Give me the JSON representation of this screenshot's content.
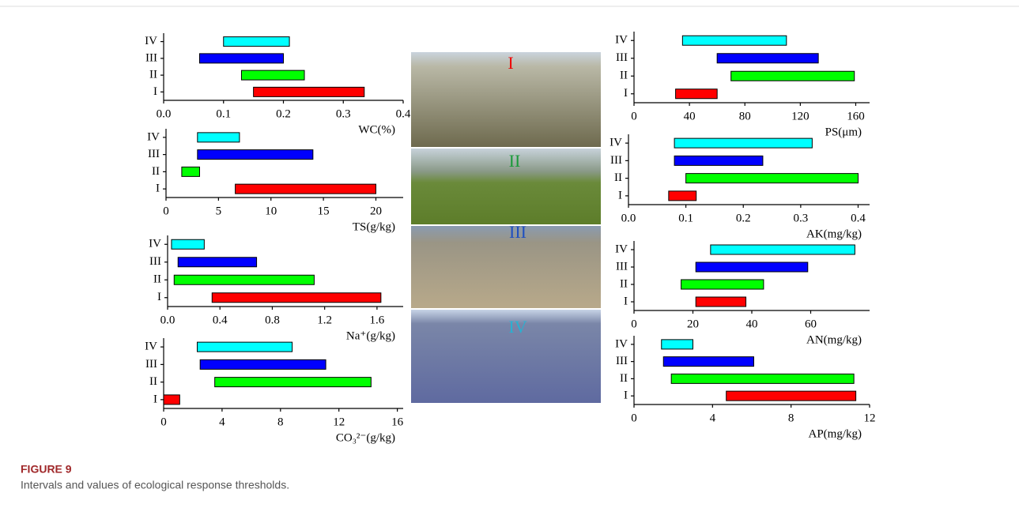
{
  "figure": {
    "label": "FIGURE 9",
    "caption": "Intervals and values of ecological response thresholds."
  },
  "photos": {
    "labels": [
      "I",
      "II",
      "III",
      "IV"
    ]
  },
  "chart_data": [
    {
      "type": "range-bar",
      "categories": [
        "I",
        "II",
        "III",
        "IV"
      ],
      "colors": [
        "#ff0000",
        "#00ff00",
        "#0000ff",
        "#00ffff"
      ],
      "values": [
        [
          0.15,
          0.335
        ],
        [
          0.13,
          0.235
        ],
        [
          0.06,
          0.2
        ],
        [
          0.1,
          0.21
        ]
      ],
      "xlabel": "WC(%)",
      "xlim": [
        0,
        0.4
      ],
      "xticks": [
        {
          "value": 0,
          "label": "0.0"
        },
        0.1,
        0.2,
        0.3,
        0.4
      ]
    },
    {
      "type": "range-bar",
      "categories": [
        "I",
        "II",
        "III",
        "IV"
      ],
      "colors": [
        "#ff0000",
        "#00ff00",
        "#0000ff",
        "#00ffff"
      ],
      "values": [
        [
          6.6,
          20
        ],
        [
          1.5,
          3.2
        ],
        [
          3,
          14
        ],
        [
          3,
          7
        ]
      ],
      "xlabel": "TS(g/kg)",
      "xlim": [
        0,
        22.6
      ],
      "xticks": [
        0,
        5,
        10,
        15,
        20
      ]
    },
    {
      "type": "range-bar",
      "categories": [
        "I",
        "II",
        "III",
        "IV"
      ],
      "colors": [
        "#ff0000",
        "#00ff00",
        "#0000ff",
        "#00ffff"
      ],
      "values": [
        [
          0.34,
          1.63
        ],
        [
          0.05,
          1.12
        ],
        [
          0.08,
          0.68
        ],
        [
          0.03,
          0.28
        ]
      ],
      "xlabel": "Na⁺(g/kg)",
      "xlim": [
        0,
        1.8
      ],
      "xticks": [
        {
          "value": 0,
          "label": "0.0"
        },
        0.4,
        0.8,
        1.2,
        1.6
      ]
    },
    {
      "type": "range-bar",
      "categories": [
        "I",
        "II",
        "III",
        "IV"
      ],
      "colors": [
        "#ff0000",
        "#00ff00",
        "#0000ff",
        "#00ffff"
      ],
      "values": [
        [
          0,
          1.1
        ],
        [
          3.5,
          14.2
        ],
        [
          2.5,
          11.1
        ],
        [
          2.3,
          8.8
        ]
      ],
      "xlabel": "CO₃²⁻(g/kg)",
      "xlim": [
        0,
        16.4
      ],
      "xticks": [
        0,
        4,
        8,
        12,
        16
      ]
    },
    {
      "type": "range-bar",
      "categories": [
        "I",
        "II",
        "III",
        "IV"
      ],
      "colors": [
        "#ff0000",
        "#00ff00",
        "#0000ff",
        "#00ffff"
      ],
      "values": [
        [
          30,
          60
        ],
        [
          70,
          159
        ],
        [
          60,
          133
        ],
        [
          35,
          110
        ]
      ],
      "xlabel": "PS(μm)",
      "xlim": [
        0,
        170
      ],
      "xticks": [
        0,
        40,
        80,
        120,
        160
      ]
    },
    {
      "type": "range-bar",
      "categories": [
        "I",
        "II",
        "III",
        "IV"
      ],
      "colors": [
        "#ff0000",
        "#00ff00",
        "#0000ff",
        "#00ffff"
      ],
      "values": [
        [
          0.07,
          0.118
        ],
        [
          0.1,
          0.4
        ],
        [
          0.08,
          0.234
        ],
        [
          0.08,
          0.32
        ]
      ],
      "xlabel": "AK(mg/kg)",
      "xlim": [
        0,
        0.42
      ],
      "xticks": [
        {
          "value": 0,
          "label": "0.0"
        },
        0.1,
        0.2,
        0.3,
        0.4
      ]
    },
    {
      "type": "range-bar",
      "categories": [
        "I",
        "II",
        "III",
        "IV"
      ],
      "colors": [
        "#ff0000",
        "#00ff00",
        "#0000ff",
        "#00ffff"
      ],
      "values": [
        [
          21,
          38
        ],
        [
          16,
          44
        ],
        [
          21,
          59
        ],
        [
          26,
          75
        ]
      ],
      "xlabel": "AN(mg/kg)",
      "xlim": [
        0,
        80
      ],
      "xticks": [
        0,
        20,
        40,
        60
      ]
    },
    {
      "type": "range-bar",
      "categories": [
        "I",
        "II",
        "III",
        "IV"
      ],
      "colors": [
        "#ff0000",
        "#00ff00",
        "#0000ff",
        "#00ffff"
      ],
      "values": [
        [
          4.7,
          11.3
        ],
        [
          1.9,
          11.2
        ],
        [
          1.5,
          6.1
        ],
        [
          1.4,
          3
        ]
      ],
      "xlabel": "AP(mg/kg)",
      "xlim": [
        0,
        12
      ],
      "xticks": [
        0,
        4,
        8,
        12
      ]
    }
  ]
}
